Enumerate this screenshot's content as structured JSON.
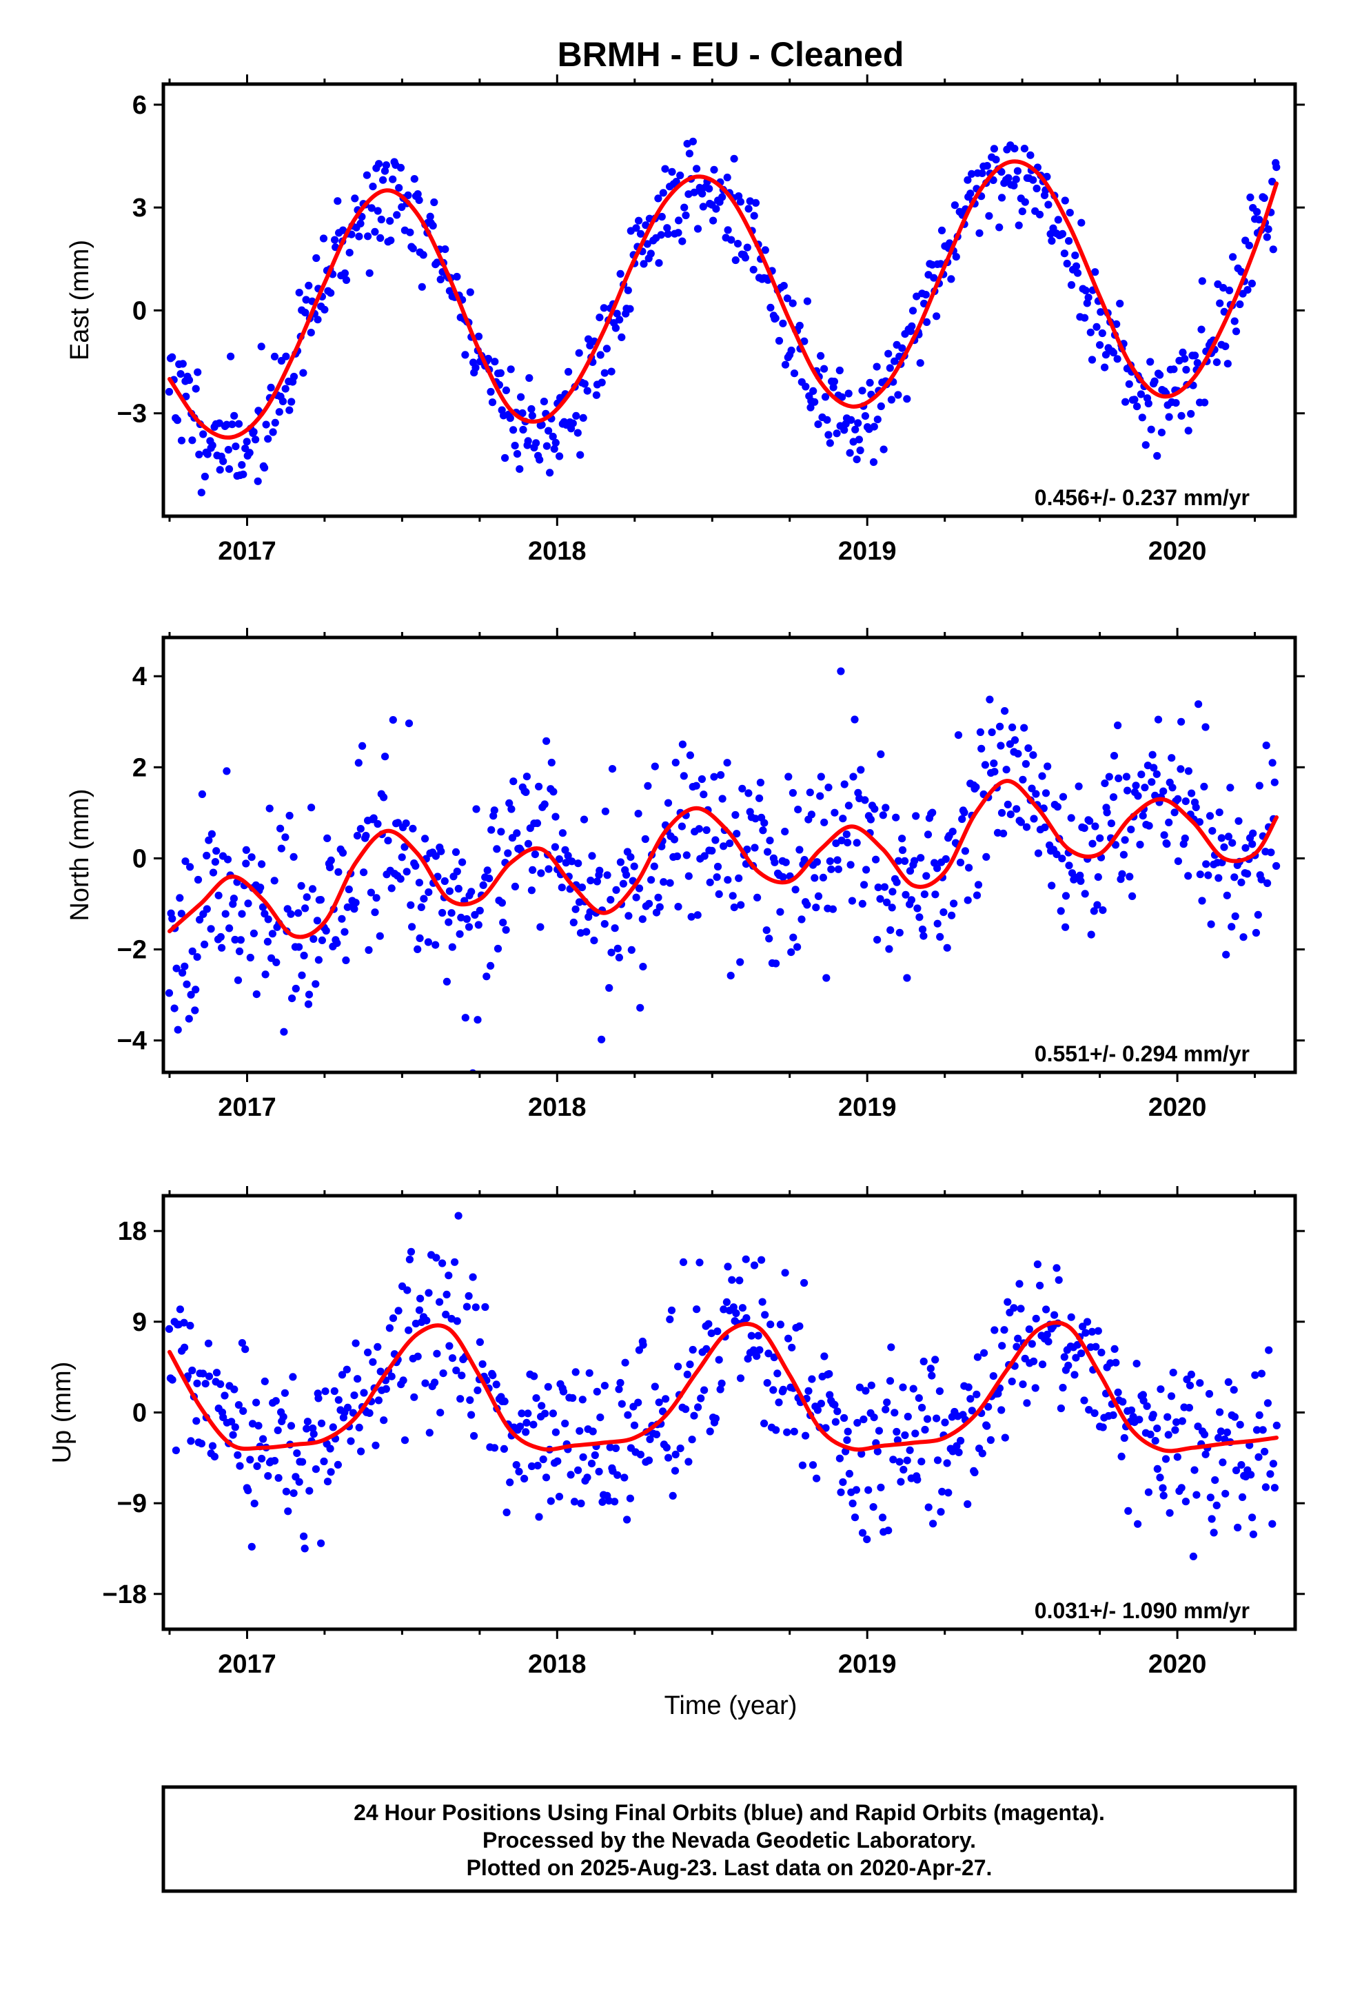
{
  "title": "BRMH  - EU - Cleaned",
  "x_axis_label": "Time (year)",
  "footer": {
    "line1": "24 Hour Positions Using Final Orbits (blue) and Rapid Orbits (magenta).",
    "line2": "Processed by the Nevada Geodetic Laboratory.",
    "line3": "Plotted on 2025-Aug-23. Last data on 2020-Apr-27."
  },
  "colors": {
    "points": "#0000ff",
    "fit": "#ff0000",
    "frame": "#000000"
  },
  "chart_data": [
    {
      "type": "scatter",
      "ylabel": "East (mm)",
      "rate_label": "0.456+/- 0.237 mm/yr",
      "xlim": [
        2016.73,
        2020.38
      ],
      "ylim": [
        -6.0,
        6.6
      ],
      "x_ticks": [
        2017,
        2018,
        2019,
        2020
      ],
      "x_tick_labels": [
        "2017",
        "2018",
        "2019",
        "2020"
      ],
      "y_ticks": [
        6,
        3,
        0,
        -3
      ],
      "y_tick_labels": [
        "6",
        "3",
        "0",
        "−3"
      ],
      "fit_curve": {
        "name": "",
        "x": [
          2016.75,
          2016.85,
          2016.95,
          2017.05,
          2017.15,
          2017.25,
          2017.35,
          2017.45,
          2017.55,
          2017.65,
          2017.75,
          2017.85,
          2017.95,
          2018.05,
          2018.15,
          2018.25,
          2018.35,
          2018.45,
          2018.55,
          2018.65,
          2018.75,
          2018.85,
          2018.95,
          2019.05,
          2019.15,
          2019.25,
          2019.35,
          2019.45,
          2019.55,
          2019.65,
          2019.75,
          2019.85,
          2019.95,
          2020.05,
          2020.15,
          2020.25,
          2020.32
        ],
        "y": [
          -2.0,
          -3.3,
          -3.7,
          -3.0,
          -1.3,
          0.8,
          2.7,
          3.5,
          2.8,
          1.0,
          -1.2,
          -2.9,
          -3.2,
          -2.3,
          -0.6,
          1.5,
          3.2,
          3.9,
          3.4,
          1.8,
          -0.3,
          -2.1,
          -2.8,
          -2.3,
          -0.8,
          1.3,
          3.3,
          4.3,
          4.0,
          2.5,
          0.4,
          -1.6,
          -2.5,
          -2.0,
          -0.4,
          1.8,
          3.7
        ]
      },
      "scatter": {
        "kind": "seasonal",
        "t0": 2016.75,
        "t1": 2020.32,
        "n": 720,
        "offset": 0.2,
        "trend": 0.456,
        "t_ref": 2018.5,
        "amp1": 3.5,
        "phase1": 2017.2,
        "amp2": 0.0,
        "phase2": 2017.0,
        "noise": 0.75,
        "seed": 11
      }
    },
    {
      "type": "scatter",
      "ylabel": "North (mm)",
      "rate_label": "0.551+/- 0.294 mm/yr",
      "xlim": [
        2016.73,
        2020.38
      ],
      "ylim": [
        -4.7,
        4.85
      ],
      "x_ticks": [
        2017,
        2018,
        2019,
        2020
      ],
      "x_tick_labels": [
        "2017",
        "2018",
        "2019",
        "2020"
      ],
      "y_ticks": [
        4,
        2,
        0,
        -2,
        -4
      ],
      "y_tick_labels": [
        "4",
        "2",
        "0",
        "−2",
        "−4"
      ],
      "fit_curve": {
        "name": "",
        "x": [
          2016.75,
          2016.85,
          2016.95,
          2017.05,
          2017.15,
          2017.25,
          2017.35,
          2017.45,
          2017.55,
          2017.65,
          2017.75,
          2017.85,
          2017.95,
          2018.05,
          2018.15,
          2018.25,
          2018.35,
          2018.45,
          2018.55,
          2018.65,
          2018.75,
          2018.85,
          2018.95,
          2019.05,
          2019.15,
          2019.25,
          2019.35,
          2019.45,
          2019.55,
          2019.65,
          2019.75,
          2019.85,
          2019.95,
          2020.05,
          2020.15,
          2020.25,
          2020.32
        ],
        "y": [
          -1.6,
          -1.0,
          -0.4,
          -0.9,
          -1.7,
          -1.4,
          -0.1,
          0.6,
          0.1,
          -0.9,
          -0.9,
          -0.1,
          0.2,
          -0.6,
          -1.2,
          -0.6,
          0.6,
          1.1,
          0.6,
          -0.3,
          -0.5,
          0.2,
          0.7,
          0.2,
          -0.6,
          -0.3,
          1.0,
          1.7,
          1.1,
          0.2,
          0.1,
          0.9,
          1.3,
          0.8,
          0.0,
          0.1,
          0.9
        ]
      },
      "scatter": {
        "kind": "curve",
        "t0": 2016.75,
        "t1": 2020.32,
        "n": 760,
        "noise": 1.05,
        "seed": 23
      }
    },
    {
      "type": "scatter",
      "ylabel": "Up (mm)",
      "rate_label": "0.031+/- 1.090 mm/yr",
      "xlim": [
        2016.73,
        2020.38
      ],
      "ylim": [
        -21.5,
        21.5
      ],
      "x_ticks": [
        2017,
        2018,
        2019,
        2020
      ],
      "x_tick_labels": [
        "2017",
        "2018",
        "2019",
        "2020"
      ],
      "y_ticks": [
        18,
        9,
        0,
        -9,
        -18
      ],
      "y_tick_labels": [
        "18",
        "9",
        "0",
        "−9",
        "−18"
      ],
      "fit_curve": {
        "name": "",
        "x": [
          2016.75,
          2016.85,
          2016.95,
          2017.05,
          2017.15,
          2017.25,
          2017.35,
          2017.45,
          2017.55,
          2017.65,
          2017.75,
          2017.85,
          2017.95,
          2018.05,
          2018.15,
          2018.25,
          2018.35,
          2018.45,
          2018.55,
          2018.65,
          2018.75,
          2018.85,
          2018.95,
          2019.05,
          2019.15,
          2019.25,
          2019.35,
          2019.45,
          2019.55,
          2019.65,
          2019.75,
          2019.85,
          2019.95,
          2020.05,
          2020.15,
          2020.25,
          2020.32
        ],
        "y": [
          6.0,
          0.5,
          -3.2,
          -3.5,
          -3.2,
          -2.7,
          -0.5,
          4.0,
          7.8,
          8.3,
          3.6,
          -1.8,
          -3.6,
          -3.3,
          -3.0,
          -2.5,
          -0.3,
          4.0,
          8.0,
          8.4,
          3.7,
          -1.7,
          -3.6,
          -3.3,
          -3.0,
          -2.5,
          -0.2,
          4.2,
          8.2,
          8.5,
          3.8,
          -1.6,
          -3.7,
          -3.5,
          -3.1,
          -2.8,
          -2.5
        ]
      },
      "scatter": {
        "kind": "curve",
        "t0": 2016.75,
        "t1": 2020.32,
        "n": 720,
        "noise": 4.2,
        "seed": 37
      }
    }
  ]
}
